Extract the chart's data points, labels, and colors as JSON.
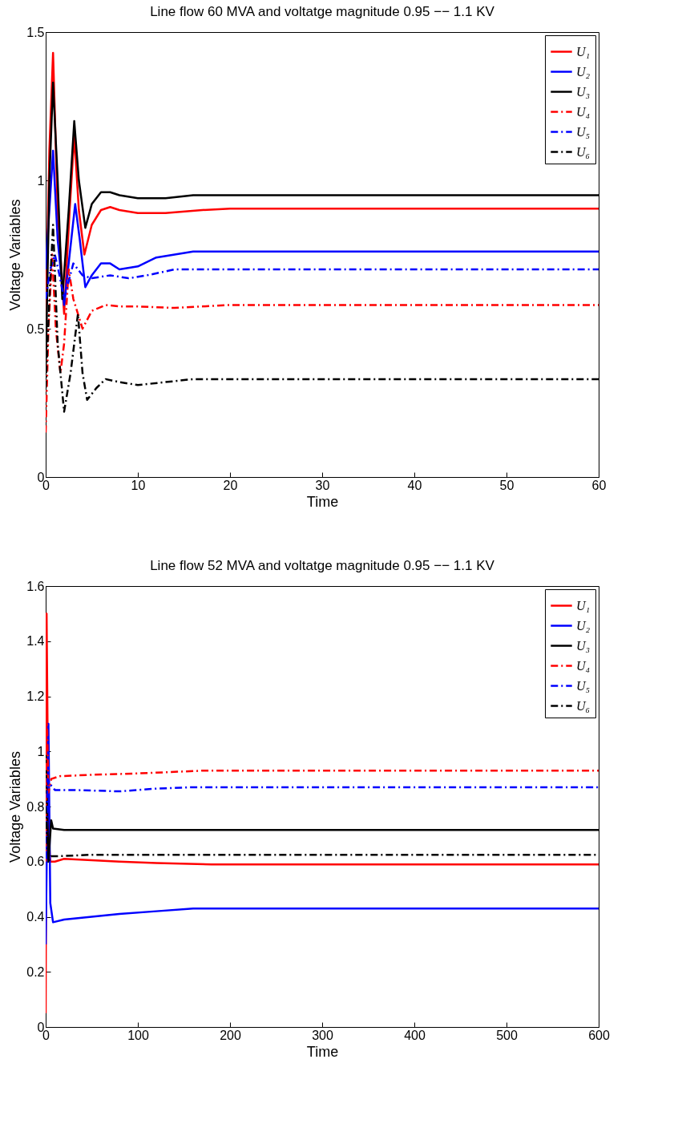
{
  "chart_data": [
    {
      "type": "line",
      "title": "Line flow 60 MVA and voltatge magnitude 0.95 −− 1.1 KV",
      "xlabel": "Time",
      "ylabel": "Voltage Variables",
      "xlim": [
        0,
        60
      ],
      "xticks": [
        0,
        10,
        20,
        30,
        40,
        50,
        60
      ],
      "ylim": [
        0,
        1.5
      ],
      "yticks": [
        0,
        0.5,
        1,
        1.5
      ],
      "grid": false,
      "legend": "top right",
      "marker": "none",
      "series": [
        {
          "name": "U₁",
          "color": "#ff0000",
          "line_style": "solid",
          "x": [
            0,
            0.4,
            0.8,
            1.3,
            2,
            2.6,
            3.1,
            3.6,
            4.2,
            5,
            6,
            7,
            8,
            10,
            13,
            17,
            20,
            30,
            40,
            50,
            60
          ],
          "values": [
            0.5,
            1.1,
            1.43,
            0.9,
            0.55,
            0.9,
            1.15,
            0.9,
            0.75,
            0.85,
            0.9,
            0.91,
            0.9,
            0.89,
            0.89,
            0.9,
            0.905,
            0.905,
            0.905,
            0.905,
            0.905
          ]
        },
        {
          "name": "U₂",
          "color": "#0000ff",
          "line_style": "solid",
          "x": [
            0,
            0.4,
            0.8,
            1.3,
            2,
            2.6,
            3.2,
            3.7,
            4.3,
            5,
            6,
            7,
            8,
            10,
            12,
            16,
            20,
            30,
            40,
            50,
            60
          ],
          "values": [
            0.7,
            0.9,
            1.1,
            0.8,
            0.58,
            0.75,
            0.92,
            0.8,
            0.64,
            0.68,
            0.72,
            0.72,
            0.7,
            0.71,
            0.74,
            0.76,
            0.76,
            0.76,
            0.76,
            0.76,
            0.76
          ]
        },
        {
          "name": "U₃",
          "color": "#000000",
          "line_style": "solid",
          "x": [
            0,
            0.4,
            0.8,
            1.3,
            1.8,
            2.5,
            3.1,
            3.6,
            4.3,
            5,
            6,
            7,
            8,
            10,
            13,
            16,
            20,
            30,
            40,
            50,
            60
          ],
          "values": [
            0.35,
            1.0,
            1.33,
            1.0,
            0.6,
            0.9,
            1.2,
            1.0,
            0.84,
            0.92,
            0.96,
            0.96,
            0.95,
            0.94,
            0.94,
            0.95,
            0.95,
            0.95,
            0.95,
            0.95,
            0.95
          ]
        },
        {
          "name": "U₄",
          "color": "#ff0000",
          "line_style": "dashed",
          "x": [
            0,
            0.3,
            0.7,
            1.1,
            1.6,
            2,
            2.5,
            3,
            3.5,
            4,
            5,
            6.5,
            8,
            10,
            14,
            20,
            30,
            40,
            50,
            60
          ],
          "values": [
            0.15,
            0.5,
            0.75,
            0.5,
            0.35,
            0.45,
            0.7,
            0.6,
            0.55,
            0.5,
            0.56,
            0.58,
            0.575,
            0.575,
            0.57,
            0.58,
            0.58,
            0.58,
            0.58,
            0.58
          ]
        },
        {
          "name": "U₅",
          "color": "#0000ff",
          "line_style": "dashed",
          "x": [
            0,
            0.5,
            1,
            1.5,
            2,
            2.5,
            3,
            4,
            5,
            7,
            9,
            11,
            14,
            20,
            30,
            40,
            50,
            60
          ],
          "values": [
            0.6,
            0.7,
            0.75,
            0.68,
            0.6,
            0.66,
            0.72,
            0.68,
            0.67,
            0.68,
            0.67,
            0.68,
            0.7,
            0.7,
            0.7,
            0.7,
            0.7,
            0.7
          ]
        },
        {
          "name": "U₆",
          "color": "#000000",
          "line_style": "dashed",
          "x": [
            0,
            0.4,
            0.8,
            1.3,
            2,
            2.7,
            3.5,
            4,
            4.5,
            5.5,
            6.5,
            8,
            10,
            13,
            16,
            20,
            30,
            40,
            50,
            60
          ],
          "values": [
            0.3,
            0.6,
            0.85,
            0.45,
            0.22,
            0.35,
            0.55,
            0.35,
            0.26,
            0.3,
            0.33,
            0.32,
            0.31,
            0.32,
            0.33,
            0.33,
            0.33,
            0.33,
            0.33,
            0.33
          ]
        }
      ]
    },
    {
      "type": "line",
      "title": "Line flow 52 MVA and voltatge magnitude 0.95 −− 1.1 KV",
      "xlabel": "Time",
      "ylabel": "Voltage Variables",
      "xlim": [
        0,
        600
      ],
      "xticks": [
        0,
        100,
        200,
        300,
        400,
        500,
        600
      ],
      "ylim": [
        0,
        1.6
      ],
      "yticks": [
        0,
        0.2,
        0.4,
        0.6,
        0.8,
        1,
        1.2,
        1.4,
        1.6
      ],
      "grid": false,
      "legend": "top right",
      "marker": "none",
      "series": [
        {
          "name": "U₁",
          "color": "#ff0000",
          "line_style": "solid",
          "x": [
            0,
            1,
            3,
            5,
            10,
            20,
            50,
            80,
            120,
            180,
            300,
            400,
            500,
            600
          ],
          "values": [
            0.05,
            1.5,
            0.7,
            0.6,
            0.6,
            0.61,
            0.605,
            0.6,
            0.595,
            0.59,
            0.59,
            0.59,
            0.59,
            0.59
          ]
        },
        {
          "name": "U₂",
          "color": "#0000ff",
          "line_style": "solid",
          "x": [
            0,
            3,
            5,
            8,
            20,
            50,
            80,
            120,
            160,
            200,
            300,
            400,
            500,
            600
          ],
          "values": [
            0.3,
            1.1,
            0.45,
            0.38,
            0.39,
            0.4,
            0.41,
            0.42,
            0.43,
            0.43,
            0.43,
            0.43,
            0.43,
            0.43
          ]
        },
        {
          "name": "U₃",
          "color": "#000000",
          "line_style": "solid",
          "x": [
            0,
            3,
            6,
            8,
            20,
            100,
            200,
            300,
            400,
            500,
            600
          ],
          "values": [
            1.0,
            0.6,
            0.75,
            0.72,
            0.715,
            0.715,
            0.715,
            0.715,
            0.715,
            0.715,
            0.715
          ]
        },
        {
          "name": "U₄",
          "color": "#ff0000",
          "line_style": "dashed",
          "x": [
            0,
            1,
            3,
            6,
            15,
            50,
            100,
            170,
            200,
            300,
            400,
            500,
            600
          ],
          "values": [
            0.6,
            1.2,
            0.85,
            0.9,
            0.91,
            0.915,
            0.92,
            0.93,
            0.93,
            0.93,
            0.93,
            0.93,
            0.93
          ]
        },
        {
          "name": "U₅",
          "color": "#0000ff",
          "line_style": "dashed",
          "x": [
            0,
            2,
            5,
            10,
            30,
            80,
            120,
            160,
            200,
            300,
            400,
            500,
            600
          ],
          "values": [
            0.5,
            0.9,
            0.88,
            0.86,
            0.86,
            0.855,
            0.865,
            0.87,
            0.87,
            0.87,
            0.87,
            0.87,
            0.87
          ]
        },
        {
          "name": "U₆",
          "color": "#000000",
          "line_style": "dashed",
          "x": [
            0,
            3,
            6,
            15,
            50,
            100,
            200,
            300,
            400,
            500,
            600
          ],
          "values": [
            0.8,
            0.6,
            0.62,
            0.62,
            0.625,
            0.625,
            0.625,
            0.625,
            0.625,
            0.625,
            0.625
          ]
        }
      ]
    }
  ]
}
